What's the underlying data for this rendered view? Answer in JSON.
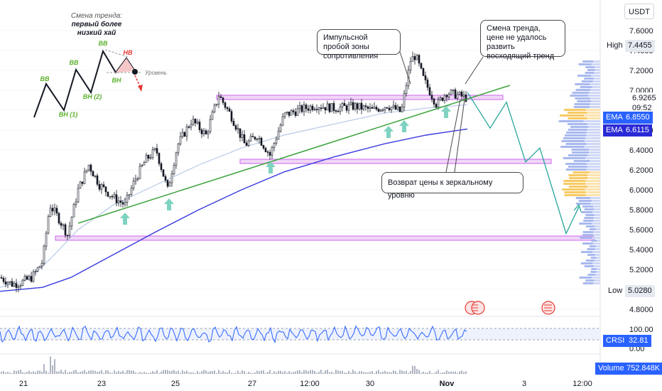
{
  "chart_data": {
    "type": "candlestick",
    "quote_currency": "USDT",
    "y_ticks": [
      "7.6000",
      "7.4000",
      "7.2000",
      "7.0000",
      "6.8000",
      "6.6000",
      "6.4000",
      "6.2000",
      "6.0000",
      "5.8000",
      "5.6000",
      "5.4000",
      "5.2000",
      "5.0000",
      "4.8000"
    ],
    "y_range": [
      4.78,
      7.72
    ],
    "x_ticks": [
      "21",
      "23",
      "25",
      "27",
      "12:00",
      "30",
      "Nov",
      "3",
      "12:00"
    ],
    "price_labels": {
      "high": {
        "label": "High",
        "value": "7.4455",
        "price": 7.4455
      },
      "current": {
        "value": "6.9265",
        "price": 6.9265,
        "timer": "09:52"
      },
      "ema_fast": {
        "label": "EMA",
        "value": "6.8550",
        "price": 6.855
      },
      "ema_slow": {
        "label": "EMA",
        "value": "6.6115",
        "price": 6.6115
      },
      "low": {
        "label": "Low",
        "value": "5.0280",
        "price": 5.028
      }
    },
    "series": {
      "anchors": [
        [
          0,
          5.12
        ],
        [
          18,
          5.05
        ],
        [
          30,
          5.07
        ],
        [
          45,
          5.12
        ],
        [
          60,
          5.28
        ],
        [
          70,
          5.85
        ],
        [
          82,
          5.72
        ],
        [
          95,
          5.55
        ],
        [
          110,
          6.0
        ],
        [
          125,
          6.25
        ],
        [
          140,
          6.05
        ],
        [
          160,
          5.92
        ],
        [
          176,
          5.85
        ],
        [
          190,
          6.1
        ],
        [
          205,
          6.3
        ],
        [
          220,
          6.4
        ],
        [
          236,
          6.0
        ],
        [
          250,
          6.45
        ],
        [
          270,
          6.7
        ],
        [
          290,
          6.55
        ],
        [
          308,
          6.95
        ],
        [
          325,
          6.75
        ],
        [
          345,
          6.45
        ],
        [
          362,
          6.55
        ],
        [
          380,
          6.35
        ],
        [
          400,
          6.75
        ],
        [
          420,
          6.8
        ],
        [
          445,
          6.85
        ],
        [
          470,
          6.82
        ],
        [
          500,
          6.84
        ],
        [
          525,
          6.8
        ],
        [
          545,
          6.85
        ],
        [
          565,
          6.78
        ],
        [
          578,
          7.3
        ],
        [
          585,
          7.35
        ],
        [
          597,
          7.1
        ],
        [
          615,
          6.85
        ],
        [
          628,
          6.98
        ],
        [
          645,
          6.95
        ],
        [
          658,
          6.92
        ]
      ],
      "ema_fast": [
        [
          0,
          5.02
        ],
        [
          40,
          5.1
        ],
        [
          70,
          5.3
        ],
        [
          110,
          5.6
        ],
        [
          160,
          5.85
        ],
        [
          220,
          6.05
        ],
        [
          280,
          6.25
        ],
        [
          340,
          6.42
        ],
        [
          400,
          6.55
        ],
        [
          470,
          6.66
        ],
        [
          540,
          6.77
        ],
        [
          600,
          6.82
        ],
        [
          658,
          6.855
        ]
      ],
      "ema_slow": [
        [
          0,
          4.98
        ],
        [
          60,
          5.02
        ],
        [
          100,
          5.12
        ],
        [
          160,
          5.35
        ],
        [
          220,
          5.58
        ],
        [
          280,
          5.8
        ],
        [
          340,
          6.0
        ],
        [
          400,
          6.18
        ],
        [
          470,
          6.33
        ],
        [
          540,
          6.46
        ],
        [
          600,
          6.55
        ],
        [
          658,
          6.6115
        ]
      ]
    },
    "levels": [
      {
        "name": "resistance-zone",
        "price": 6.97
      },
      {
        "name": "mid-zone",
        "price": 6.27
      },
      {
        "name": "low-zone",
        "price": 5.54
      }
    ],
    "projection": [
      [
        658,
        6.98
      ],
      [
        690,
        6.62
      ],
      [
        713,
        6.88
      ],
      [
        740,
        6.28
      ],
      [
        760,
        6.42
      ],
      [
        797,
        5.56
      ],
      [
        815,
        5.83
      ]
    ],
    "indicator": {
      "name": "CRSI",
      "value": "32.81",
      "levels": [
        "100.00",
        "0.00"
      ]
    },
    "volume": {
      "label": "Volume",
      "value": "752.848K"
    }
  },
  "annotations": {
    "impulse": "Импульсной пробой зоны сопротивления",
    "trend_change": "Смена тренда, цене не удалось развить восходящий тренд",
    "return": "Возврат цены к зеркальному уровню"
  },
  "inset": {
    "title_line1": "Смена тренда:",
    "title_line2": "первый более",
    "title_line3": "низкий хай",
    "labels": {
      "bb": "BB",
      "bh1": "BH (1)",
      "bh2": "BH (2)",
      "bh": "BH",
      "hb": "HB",
      "level": "Уровень"
    }
  },
  "colors": {
    "candle": "#131722",
    "ema_fast": "#b7c9e6",
    "ema_slow": "#3a3adf",
    "trendline": "#3aa33a",
    "zone": "#cc66ee",
    "projection": "#26a69a",
    "arrow": "#7fd3c0",
    "crsi": "#2962ff",
    "badge_blue": "#2962ff",
    "accent_red": "#e53935"
  }
}
